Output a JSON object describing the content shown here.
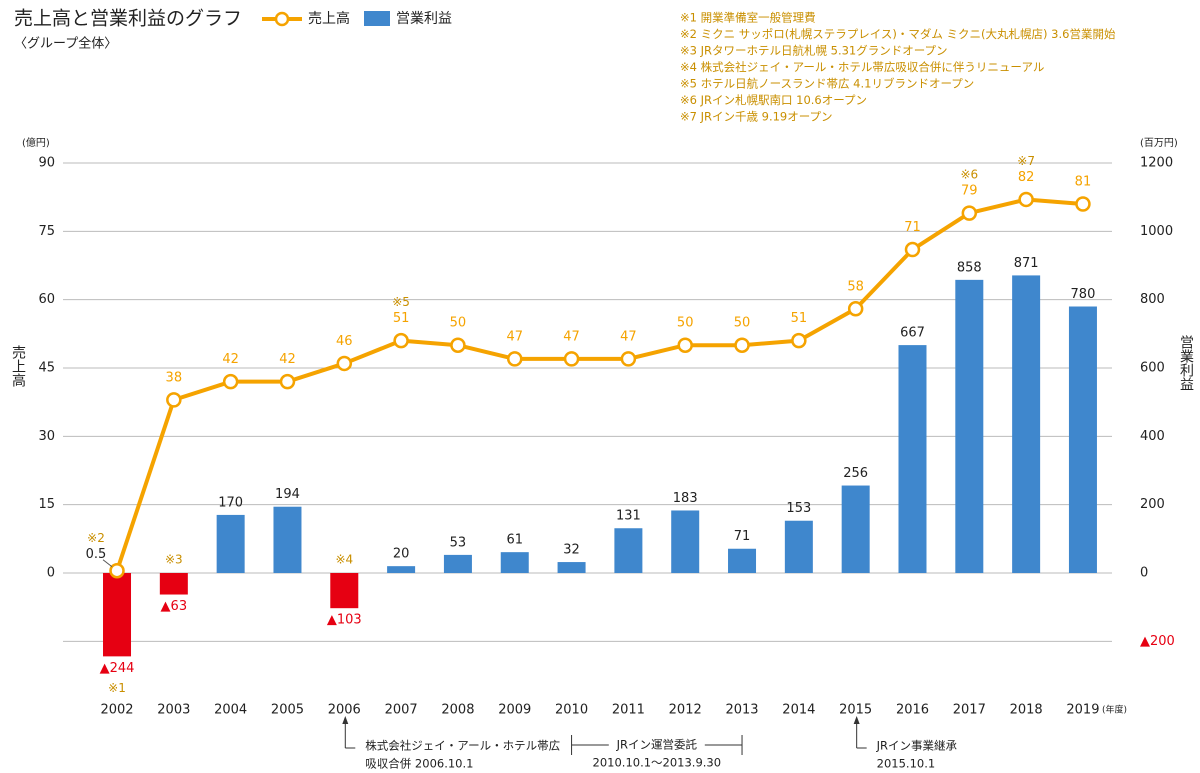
{
  "chart_data": {
    "type": "combo",
    "title": "売上高と営業利益のグラフ",
    "subtitle": "〈グループ全体〉",
    "notes": [
      "※1 開業準備室一般管理費",
      "※2 ミクニ サッポロ(札幌ステラプレイス)・マダム ミクニ(大丸札幌店) 3.6営業開始",
      "※3 JRタワーホテル日航札幌 5.31グランドオープン",
      "※4 株式会社ジェイ・アール・ホテル帯広吸収合併に伴うリニューアル",
      "※5 ホテル日航ノースランド帯広 4.1リブランドオープン",
      "※6 JRイン札幌駅南口 10.6オープン",
      "※7 JRイン千歳 9.19オープン"
    ],
    "y_label": "売上高",
    "y2_label": "営業利益",
    "y_unit": "(億円)",
    "y2_unit": "(百万円)",
    "x_unit": "(年度)",
    "categories": [
      "2002",
      "2003",
      "2004",
      "2005",
      "2006",
      "2007",
      "2008",
      "2009",
      "2010",
      "2011",
      "2012",
      "2013",
      "2014",
      "2015",
      "2016",
      "2017",
      "2018",
      "2019"
    ],
    "series": [
      {
        "name": "売上高",
        "type": "line",
        "axis": "y",
        "color": "#f5a300",
        "values": [
          0.5,
          38,
          42,
          42,
          46,
          51,
          50,
          47,
          47,
          47,
          50,
          50,
          51,
          58,
          71,
          79,
          82,
          81
        ]
      },
      {
        "name": "営業利益",
        "type": "bar",
        "axis": "y2",
        "color": "#3f87cd",
        "negative_color": "#e60012",
        "values": [
          -244,
          -63,
          170,
          194,
          -103,
          20,
          53,
          61,
          32,
          131,
          183,
          71,
          153,
          256,
          667,
          858,
          871,
          780
        ],
        "value_labels": [
          "▲244",
          "▲63",
          "170",
          "194",
          "▲103",
          "20",
          "53",
          "61",
          "32",
          "131",
          "183",
          "71",
          "153",
          "256",
          "667",
          "858",
          "871",
          "780"
        ]
      }
    ],
    "ylim": [
      -22.5,
      90
    ],
    "yticks": [
      0,
      15,
      30,
      45,
      60,
      75,
      90
    ],
    "y2lim": [
      -300,
      1200
    ],
    "y2ticks": [
      {
        "value": -200,
        "label": "▲200"
      },
      0,
      200,
      400,
      600,
      800,
      1000,
      1200
    ],
    "grid": true,
    "line_notes": [
      {
        "category": "2002",
        "text": "※2"
      },
      {
        "category": "2007",
        "text": "※5"
      },
      {
        "category": "2017",
        "text": "※6"
      },
      {
        "category": "2018",
        "text": "※7"
      }
    ],
    "bar_notes": [
      {
        "category": "2002",
        "text": "※1"
      },
      {
        "category": "2003",
        "text": "※3"
      },
      {
        "category": "2006",
        "text": "※4"
      }
    ],
    "events": [
      {
        "categories": [
          "2006"
        ],
        "lines": [
          "株式会社ジェイ・アール・ホテル帯広",
          "吸収合併 2006.10.1"
        ]
      },
      {
        "categories": [
          "2010",
          "2013"
        ],
        "lines": [
          "JRイン運営委託",
          "2010.10.1～2013.9.30"
        ]
      },
      {
        "categories": [
          "2015"
        ],
        "lines": [
          "JRイン事業継承",
          "2015.10.1"
        ]
      }
    ]
  }
}
